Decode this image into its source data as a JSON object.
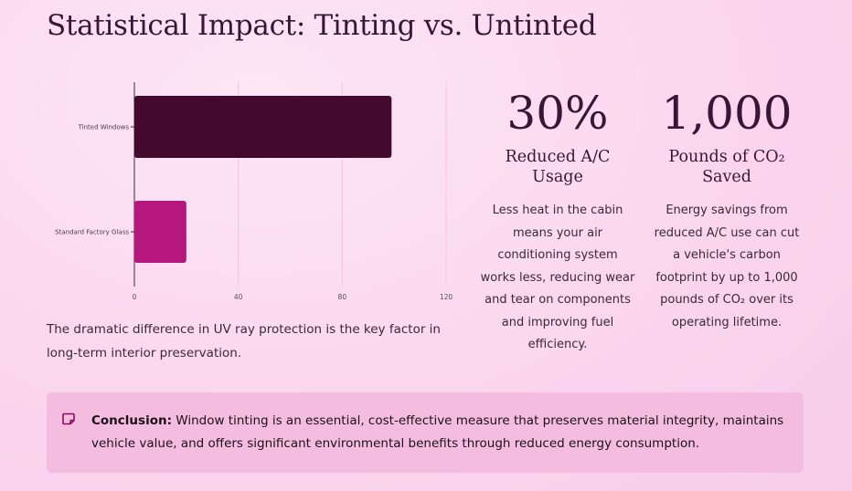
{
  "page": {
    "title": "Statistical Impact: Tinting vs. Untinted"
  },
  "chart_data": {
    "type": "bar",
    "orientation": "horizontal",
    "categories": [
      "Tinted Windows",
      "Standard Factory Glass"
    ],
    "values": [
      99,
      20
    ],
    "colors": [
      "#45082f",
      "#b5177e"
    ],
    "xlim": [
      0,
      120
    ],
    "xticks": [
      "0",
      "40",
      "80",
      "120"
    ],
    "grid": true,
    "legend": "none"
  },
  "caption": "The dramatic difference in UV ray protection is the key factor in long-term interior preservation.",
  "stats": [
    {
      "value": "30%",
      "label": "Reduced A/C Usage",
      "description": "Less heat in the cabin means your air conditioning system works less, reducing wear and tear on components and improving fuel efficiency."
    },
    {
      "value": "1,000",
      "label": "Pounds of CO₂ Saved",
      "description": "Energy savings from reduced A/C use can cut a vehicle's carbon footprint by up to 1,000 pounds of CO₂ over its operating lifetime."
    }
  ],
  "conclusion": {
    "icon": "note-icon",
    "heading": "Conclusion:",
    "text": " Window tinting is an essential, cost-effective measure that preserves material integrity, maintains vehicle value, and offers significant environmental benefits through reduced energy consumption."
  },
  "colors": {
    "accent": "#b5177e",
    "dark": "#45082f"
  }
}
